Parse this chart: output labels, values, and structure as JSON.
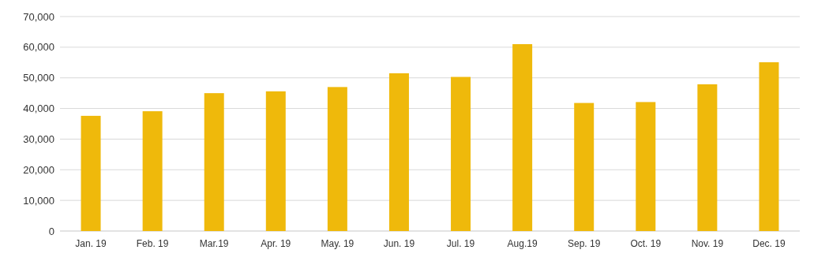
{
  "chart_data": {
    "type": "bar",
    "categories": [
      "Jan. 19",
      "Feb. 19",
      "Mar.19",
      "Apr. 19",
      "May. 19",
      "Jun. 19",
      "Jul. 19",
      "Aug.19",
      "Sep. 19",
      "Oct. 19",
      "Nov. 19",
      "Dec. 19"
    ],
    "values": [
      37600,
      39100,
      45000,
      45600,
      47000,
      51500,
      50300,
      61000,
      41800,
      42100,
      47900,
      55100
    ],
    "color": "#efb90b",
    "ylim": [
      0,
      70000
    ],
    "yticks": [
      {
        "value": 0,
        "label": "0"
      },
      {
        "value": 10000,
        "label": "10,000"
      },
      {
        "value": 20000,
        "label": "20,000"
      },
      {
        "value": 30000,
        "label": "30,000"
      },
      {
        "value": 40000,
        "label": "40,000"
      },
      {
        "value": 50000,
        "label": "50,000"
      },
      {
        "value": 60000,
        "label": "60,000"
      },
      {
        "value": 70000,
        "label": "70,000"
      }
    ],
    "grid": "y"
  }
}
